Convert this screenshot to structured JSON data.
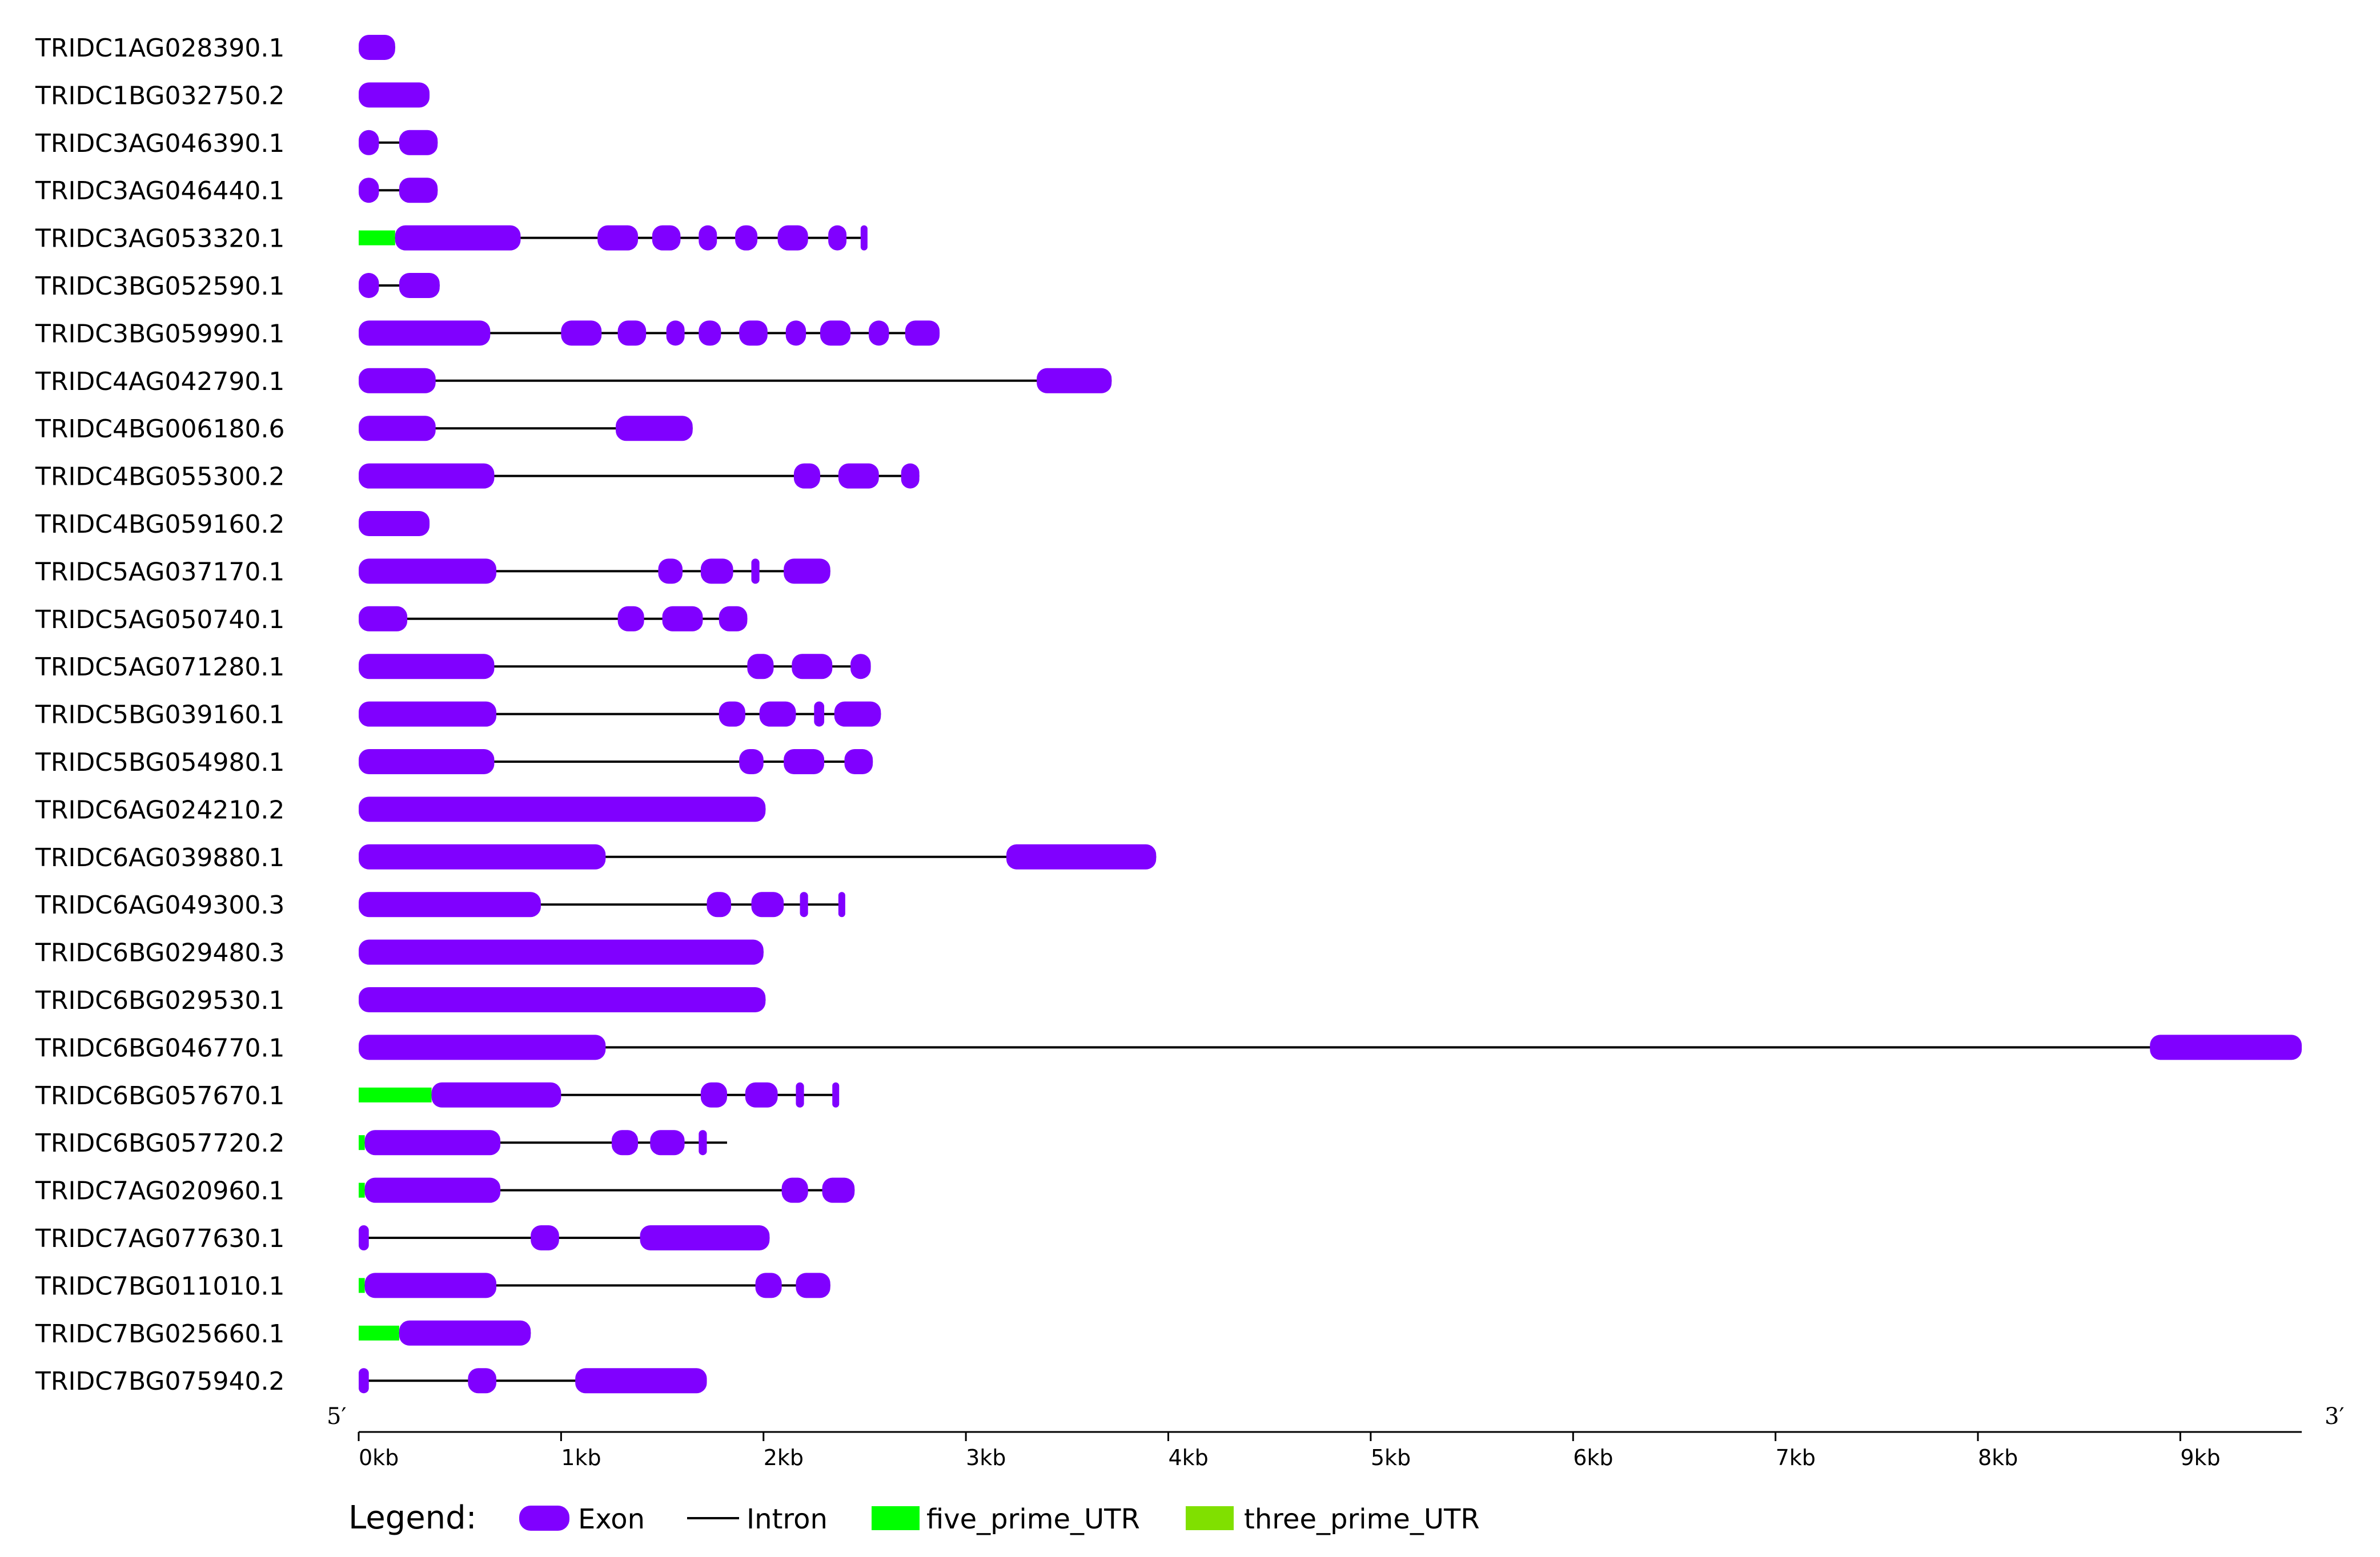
{
  "chart_data": {
    "type": "gene_structure",
    "five_prime_label": "5′",
    "three_prime_label": "3′",
    "x_axis": {
      "unit": "kb",
      "range": [
        0,
        9.6
      ],
      "ticks": [
        {
          "value": 0,
          "label": "0kb"
        },
        {
          "value": 1,
          "label": "1kb"
        },
        {
          "value": 2,
          "label": "2kb"
        },
        {
          "value": 3,
          "label": "3kb"
        },
        {
          "value": 4,
          "label": "4kb"
        },
        {
          "value": 5,
          "label": "5kb"
        },
        {
          "value": 6,
          "label": "6kb"
        },
        {
          "value": 7,
          "label": "7kb"
        },
        {
          "value": 8,
          "label": "8kb"
        },
        {
          "value": 9,
          "label": "9kb"
        }
      ]
    },
    "legend": {
      "title": "Legend:",
      "items": [
        {
          "type": "exon",
          "label": "Exon"
        },
        {
          "type": "intron",
          "label": "Intron"
        },
        {
          "type": "five_prime_UTR",
          "label": "five_prime_UTR"
        },
        {
          "type": "three_prime_UTR",
          "label": "three_prime_UTR"
        }
      ]
    },
    "colors": {
      "exon": "#8000ff",
      "intron": "#000000",
      "five_prime_UTR": "#00ff00",
      "three_prime_UTR": "#80e000",
      "axis": "#000000"
    },
    "genes": [
      {
        "name": "TRIDC1AG028390.1",
        "length": 0.18,
        "utr5": [],
        "exons": [
          [
            0.0,
            0.18
          ]
        ]
      },
      {
        "name": "TRIDC1BG032750.2",
        "length": 0.35,
        "utr5": [],
        "exons": [
          [
            0.0,
            0.35
          ]
        ]
      },
      {
        "name": "TRIDC3AG046390.1",
        "length": 0.39,
        "utr5": [],
        "exons": [
          [
            0.0,
            0.1
          ],
          [
            0.2,
            0.39
          ]
        ]
      },
      {
        "name": "TRIDC3AG046440.1",
        "length": 0.39,
        "utr5": [],
        "exons": [
          [
            0.0,
            0.1
          ],
          [
            0.2,
            0.39
          ]
        ]
      },
      {
        "name": "TRIDC3AG053320.1",
        "length": 2.5,
        "utr5": [
          [
            0.0,
            0.18
          ]
        ],
        "exons": [
          [
            0.18,
            0.8
          ],
          [
            1.18,
            1.38
          ],
          [
            1.45,
            1.59
          ],
          [
            1.68,
            1.77
          ],
          [
            1.86,
            1.97
          ],
          [
            2.07,
            2.22
          ],
          [
            2.32,
            2.41
          ],
          [
            2.48,
            2.5
          ]
        ]
      },
      {
        "name": "TRIDC3BG052590.1",
        "length": 0.4,
        "utr5": [],
        "exons": [
          [
            0.0,
            0.1
          ],
          [
            0.2,
            0.4
          ]
        ]
      },
      {
        "name": "TRIDC3BG059990.1",
        "length": 2.87,
        "utr5": [],
        "exons": [
          [
            0.0,
            0.65
          ],
          [
            1.0,
            1.2
          ],
          [
            1.28,
            1.42
          ],
          [
            1.52,
            1.61
          ],
          [
            1.68,
            1.79
          ],
          [
            1.88,
            2.02
          ],
          [
            2.11,
            2.21
          ],
          [
            2.28,
            2.43
          ],
          [
            2.52,
            2.62
          ],
          [
            2.7,
            2.87
          ]
        ]
      },
      {
        "name": "TRIDC4AG042790.1",
        "length": 3.72,
        "utr5": [],
        "exons": [
          [
            0.0,
            0.38
          ],
          [
            3.35,
            3.72
          ]
        ]
      },
      {
        "name": "TRIDC4BG006180.6",
        "length": 1.65,
        "utr5": [],
        "exons": [
          [
            0.0,
            0.38
          ],
          [
            1.27,
            1.65
          ]
        ]
      },
      {
        "name": "TRIDC4BG055300.2",
        "length": 2.77,
        "utr5": [],
        "exons": [
          [
            0.0,
            0.67
          ],
          [
            2.15,
            2.28
          ],
          [
            2.37,
            2.57
          ],
          [
            2.68,
            2.77
          ]
        ]
      },
      {
        "name": "TRIDC4BG059160.2",
        "length": 0.35,
        "utr5": [],
        "exons": [
          [
            0.0,
            0.35
          ]
        ]
      },
      {
        "name": "TRIDC5AG037170.1",
        "length": 2.33,
        "utr5": [],
        "exons": [
          [
            0.0,
            0.68
          ],
          [
            1.48,
            1.6
          ],
          [
            1.69,
            1.85
          ],
          [
            1.94,
            1.98
          ],
          [
            2.1,
            2.33
          ]
        ]
      },
      {
        "name": "TRIDC5AG050740.1",
        "length": 1.92,
        "utr5": [],
        "exons": [
          [
            0.0,
            0.24
          ],
          [
            1.28,
            1.41
          ],
          [
            1.5,
            1.7
          ],
          [
            1.78,
            1.92
          ]
        ]
      },
      {
        "name": "TRIDC5AG071280.1",
        "length": 2.53,
        "utr5": [],
        "exons": [
          [
            0.0,
            0.67
          ],
          [
            1.92,
            2.05
          ],
          [
            2.14,
            2.34
          ],
          [
            2.43,
            2.53
          ]
        ]
      },
      {
        "name": "TRIDC5BG039160.1",
        "length": 2.58,
        "utr5": [],
        "exons": [
          [
            0.0,
            0.68
          ],
          [
            1.78,
            1.91
          ],
          [
            1.98,
            2.16
          ],
          [
            2.25,
            2.3
          ],
          [
            2.35,
            2.58
          ]
        ]
      },
      {
        "name": "TRIDC5BG054980.1",
        "length": 2.54,
        "utr5": [],
        "exons": [
          [
            0.0,
            0.67
          ],
          [
            1.88,
            2.0
          ],
          [
            2.1,
            2.3
          ],
          [
            2.4,
            2.54
          ]
        ]
      },
      {
        "name": "TRIDC6AG024210.2",
        "length": 2.01,
        "utr5": [],
        "exons": [
          [
            0.0,
            2.01
          ]
        ]
      },
      {
        "name": "TRIDC6AG039880.1",
        "length": 3.94,
        "utr5": [],
        "exons": [
          [
            0.0,
            1.22
          ],
          [
            3.2,
            3.94
          ]
        ]
      },
      {
        "name": "TRIDC6AG049300.3",
        "length": 2.39,
        "utr5": [],
        "exons": [
          [
            0.0,
            0.9
          ],
          [
            1.72,
            1.84
          ],
          [
            1.94,
            2.1
          ],
          [
            2.18,
            2.22
          ],
          [
            2.37,
            2.39
          ]
        ]
      },
      {
        "name": "TRIDC6BG029480.3",
        "length": 2.0,
        "utr5": [],
        "exons": [
          [
            0.0,
            2.0
          ]
        ]
      },
      {
        "name": "TRIDC6BG029530.1",
        "length": 2.01,
        "utr5": [],
        "exons": [
          [
            0.0,
            2.01
          ]
        ]
      },
      {
        "name": "TRIDC6BG046770.1",
        "length": 9.6,
        "utr5": [],
        "exons": [
          [
            0.0,
            1.22
          ],
          [
            8.85,
            9.6
          ]
        ]
      },
      {
        "name": "TRIDC6BG057670.1",
        "length": 2.37,
        "utr5": [
          [
            0.0,
            0.36
          ]
        ],
        "exons": [
          [
            0.36,
            1.0
          ],
          [
            1.69,
            1.82
          ],
          [
            1.91,
            2.07
          ],
          [
            2.16,
            2.2
          ],
          [
            2.34,
            2.37
          ]
        ]
      },
      {
        "name": "TRIDC6BG057720.2",
        "length": 1.82,
        "utr5": [
          [
            0.0,
            0.03
          ]
        ],
        "exons": [
          [
            0.03,
            0.7
          ],
          [
            1.25,
            1.38
          ],
          [
            1.44,
            1.61
          ],
          [
            1.68,
            1.72
          ]
        ]
      },
      {
        "name": "TRIDC7AG020960.1",
        "length": 2.45,
        "utr5": [
          [
            0.0,
            0.03
          ]
        ],
        "exons": [
          [
            0.03,
            0.7
          ],
          [
            2.09,
            2.22
          ],
          [
            2.29,
            2.45
          ]
        ]
      },
      {
        "name": "TRIDC7AG077630.1",
        "length": 2.03,
        "utr5": [],
        "exons": [
          [
            0.0,
            0.05
          ],
          [
            0.85,
            0.99
          ],
          [
            1.39,
            2.03
          ]
        ]
      },
      {
        "name": "TRIDC7BG011010.1",
        "length": 2.33,
        "utr5": [
          [
            0.0,
            0.03
          ]
        ],
        "exons": [
          [
            0.03,
            0.68
          ],
          [
            1.96,
            2.09
          ],
          [
            2.16,
            2.33
          ]
        ]
      },
      {
        "name": "TRIDC7BG025660.1",
        "length": 0.85,
        "utr5": [
          [
            0.0,
            0.2
          ]
        ],
        "exons": [
          [
            0.2,
            0.85
          ]
        ]
      },
      {
        "name": "TRIDC7BG075940.2",
        "length": 1.72,
        "utr5": [],
        "exons": [
          [
            0.0,
            0.05
          ],
          [
            0.54,
            0.68
          ],
          [
            1.07,
            1.72
          ]
        ]
      }
    ]
  }
}
